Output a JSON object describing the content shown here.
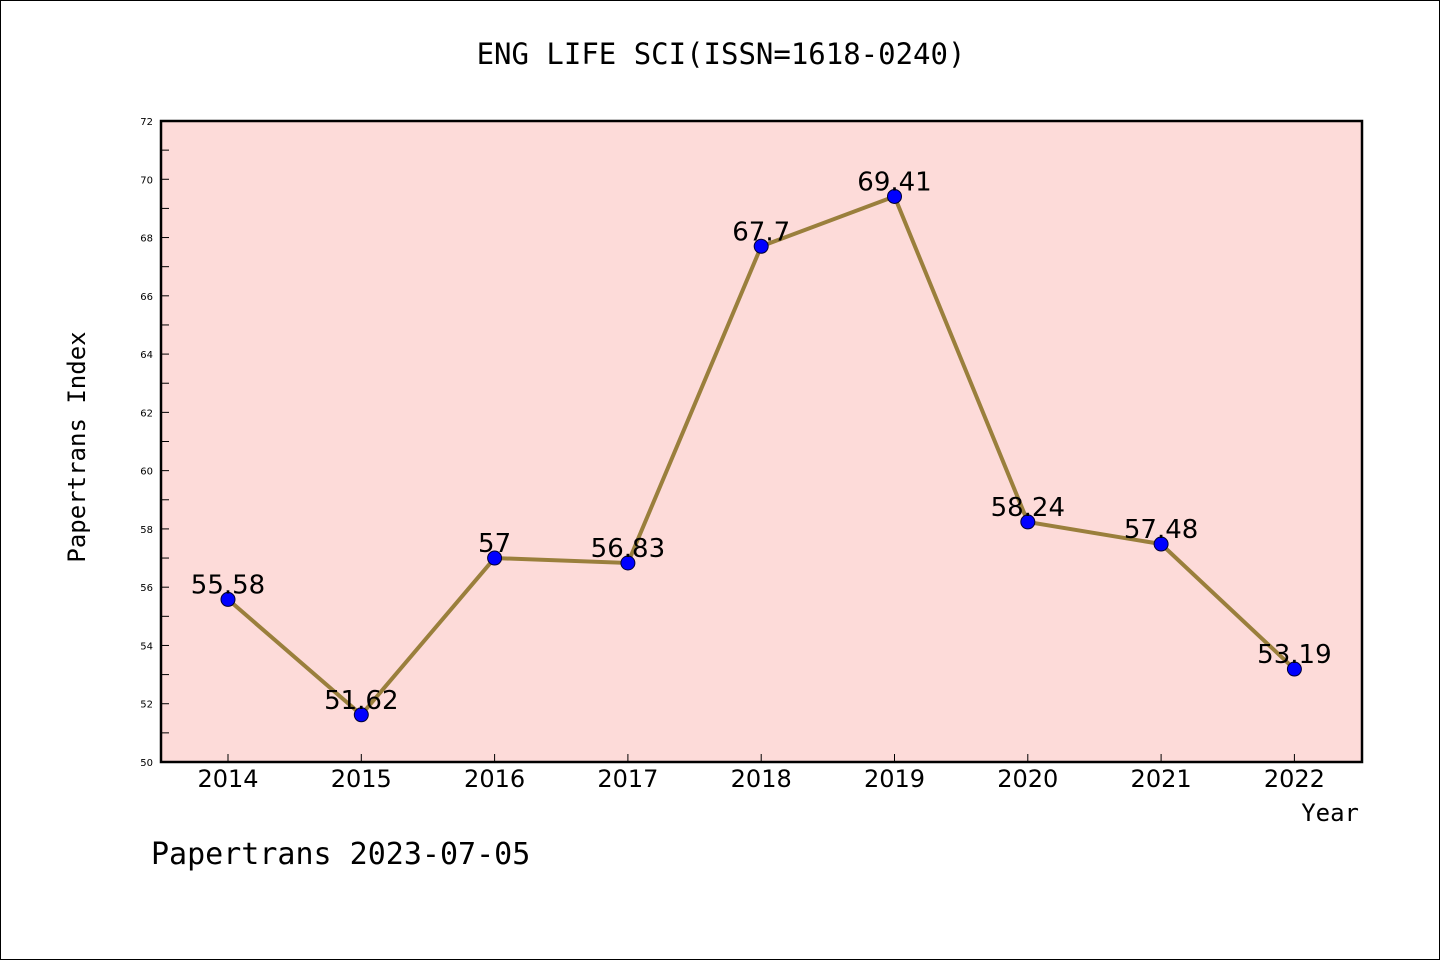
{
  "title": "ENG LIFE SCI(ISSN=1618-0240)",
  "footer": "Papertrans 2023-07-05",
  "colors": {
    "plot_bg": "#fddbd9",
    "line": "#9a7f3c",
    "marker": "#0000ff",
    "axis": "#000000"
  },
  "chart_data": {
    "type": "line",
    "xlabel": "Year",
    "ylabel": "Papertrans Index",
    "ylim": [
      50,
      72
    ],
    "y_ticks": [
      50,
      52,
      54,
      56,
      58,
      60,
      62,
      64,
      66,
      68,
      70,
      72
    ],
    "categories": [
      "2014",
      "2015",
      "2016",
      "2017",
      "2018",
      "2019",
      "2020",
      "2021",
      "2022"
    ],
    "series": [
      {
        "values": [
          55.58,
          51.62,
          57,
          56.83,
          67.7,
          69.41,
          58.24,
          57.48,
          53.19
        ],
        "labels": [
          "55.58",
          "51.62",
          "57",
          "56.83",
          "67.7",
          "69.41",
          "58.24",
          "57.48",
          "53.19"
        ]
      }
    ],
    "legend": "none",
    "grid": false
  }
}
